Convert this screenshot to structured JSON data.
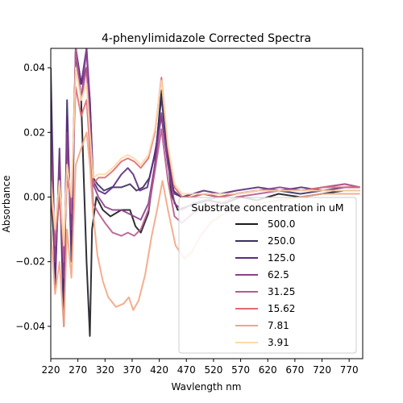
{
  "chart_data": {
    "type": "line",
    "title": "4-phenylimidazole Corrected Spectra",
    "xlabel": "Wavlength nm",
    "ylabel": "Absorbance",
    "xlim": [
      220,
      795
    ],
    "ylim": [
      -0.05,
      0.046
    ],
    "xticks": [
      220,
      270,
      320,
      370,
      420,
      470,
      520,
      570,
      620,
      670,
      720,
      770
    ],
    "yticks": [
      0.04,
      0.02,
      0.0,
      -0.02,
      -0.04
    ],
    "ytick_labels": [
      "0.04",
      "0.02",
      "0.00",
      "−0.02",
      "−0.04"
    ],
    "grid": false,
    "legend": {
      "title": "Substrate concentration in uM",
      "placement": "lower-right"
    },
    "series": [
      {
        "name": "500.0",
        "color": "#1c1a1f",
        "x": [
          220,
          228,
          236,
          244,
          250,
          258,
          266,
          276,
          286,
          292,
          296,
          304,
          316,
          330,
          350,
          366,
          376,
          386,
          400,
          412,
          424,
          432,
          442,
          454,
          470,
          490,
          510,
          540,
          570,
          600,
          640,
          680,
          720,
          760,
          790
        ],
        "y": [
          0.002,
          -0.02,
          0.01,
          -0.03,
          0.02,
          -0.01,
          0.045,
          0.03,
          -0.02,
          -0.043,
          -0.01,
          0.0,
          -0.004,
          -0.006,
          -0.004,
          -0.004,
          -0.009,
          -0.011,
          -0.005,
          0.01,
          0.033,
          0.02,
          0.001,
          -0.004,
          -0.003,
          -0.002,
          -0.001,
          -0.002,
          0.0,
          -0.001,
          0.001,
          0.0,
          0.001,
          0.002,
          0.002
        ]
      },
      {
        "name": "250.0",
        "color": "#3b2f5e",
        "x": [
          220,
          228,
          236,
          244,
          250,
          258,
          266,
          276,
          286,
          292,
          298,
          306,
          318,
          332,
          350,
          366,
          378,
          390,
          402,
          414,
          424,
          434,
          446,
          460,
          480,
          500,
          530,
          560,
          600,
          640,
          680,
          720,
          760,
          790
        ],
        "y": [
          0.04,
          -0.025,
          0.01,
          -0.04,
          0.03,
          -0.02,
          0.046,
          0.035,
          0.04,
          0.03,
          0.006,
          0.004,
          0.002,
          0.003,
          0.003,
          0.004,
          0.002,
          0.003,
          0.006,
          0.015,
          0.031,
          0.015,
          0.002,
          0.0,
          0.0,
          0.001,
          0.0,
          0.001,
          0.002,
          0.002,
          0.001,
          0.002,
          0.002,
          0.002
        ]
      },
      {
        "name": "125.0",
        "color": "#5c2a80",
        "x": [
          220,
          228,
          236,
          244,
          250,
          258,
          266,
          276,
          286,
          292,
          298,
          308,
          320,
          334,
          350,
          362,
          372,
          384,
          398,
          410,
          424,
          436,
          448,
          462,
          482,
          502,
          532,
          562,
          602,
          642,
          682,
          722,
          762,
          790
        ],
        "y": [
          0.03,
          -0.028,
          0.015,
          -0.035,
          0.025,
          -0.015,
          0.046,
          0.035,
          0.046,
          0.03,
          0.005,
          0.002,
          0.001,
          0.003,
          0.007,
          0.009,
          0.007,
          0.002,
          0.003,
          0.012,
          0.025,
          0.01,
          0.001,
          0.0,
          0.001,
          0.002,
          0.001,
          0.002,
          0.003,
          0.002,
          0.003,
          0.002,
          0.003,
          0.003
        ]
      },
      {
        "name": "62.5",
        "color": "#8b3f8e",
        "x": [
          220,
          228,
          236,
          244,
          250,
          258,
          266,
          276,
          286,
          292,
          298,
          308,
          320,
          334,
          350,
          362,
          374,
          386,
          400,
          412,
          424,
          436,
          448,
          462,
          482,
          502,
          532,
          562,
          602,
          642,
          682,
          722,
          762,
          790
        ],
        "y": [
          0.02,
          -0.02,
          0.01,
          -0.025,
          0.02,
          -0.01,
          0.046,
          0.03,
          0.046,
          0.025,
          0.004,
          0.0,
          -0.003,
          -0.004,
          -0.004,
          -0.005,
          -0.006,
          -0.007,
          -0.002,
          0.01,
          0.026,
          0.01,
          -0.002,
          -0.004,
          -0.002,
          -0.001,
          0.0,
          0.001,
          0.002,
          0.003,
          0.002,
          0.003,
          0.004,
          0.003
        ]
      },
      {
        "name": "31.25",
        "color": "#b75a8f",
        "x": [
          220,
          228,
          236,
          244,
          250,
          258,
          266,
          276,
          286,
          292,
          298,
          308,
          320,
          334,
          350,
          362,
          374,
          386,
          400,
          412,
          424,
          436,
          448,
          462,
          482,
          502,
          532,
          562,
          602,
          642,
          682,
          722,
          762,
          790
        ],
        "y": [
          0.01,
          -0.015,
          0.0,
          -0.02,
          0.01,
          -0.005,
          0.046,
          0.03,
          0.04,
          0.02,
          -0.002,
          -0.005,
          -0.008,
          -0.011,
          -0.012,
          -0.011,
          -0.012,
          -0.01,
          -0.004,
          0.008,
          0.021,
          0.005,
          -0.006,
          -0.008,
          -0.005,
          -0.003,
          -0.002,
          0.0,
          0.001,
          0.002,
          0.002,
          0.003,
          0.004,
          0.003
        ]
      },
      {
        "name": "15.62",
        "color": "#e06b72",
        "x": [
          220,
          228,
          236,
          244,
          250,
          258,
          266,
          276,
          286,
          292,
          298,
          308,
          320,
          334,
          350,
          362,
          374,
          386,
          400,
          412,
          424,
          436,
          448,
          462,
          482,
          502,
          532,
          562,
          602,
          642,
          682,
          722,
          762,
          790
        ],
        "y": [
          0.0,
          -0.01,
          0.0,
          -0.015,
          0.005,
          0.0,
          0.034,
          0.025,
          0.03,
          0.015,
          0.004,
          0.006,
          0.006,
          0.008,
          0.011,
          0.012,
          0.011,
          0.009,
          0.012,
          0.02,
          0.037,
          0.015,
          0.003,
          0.0,
          0.0,
          0.001,
          0.0,
          0.001,
          0.002,
          0.002,
          0.002,
          0.003,
          0.003,
          0.003
        ]
      },
      {
        "name": "7.81",
        "color": "#f4a582",
        "x": [
          220,
          228,
          236,
          244,
          250,
          258,
          266,
          276,
          286,
          292,
          298,
          306,
          316,
          326,
          340,
          354,
          364,
          372,
          382,
          394,
          406,
          416,
          426,
          436,
          450,
          466,
          480,
          496,
          514,
          540,
          570,
          600,
          640,
          680,
          720,
          760,
          790
        ],
        "y": [
          -0.01,
          -0.03,
          -0.02,
          -0.04,
          -0.01,
          -0.025,
          0.01,
          0.015,
          0.02,
          0.01,
          -0.005,
          -0.018,
          -0.026,
          -0.031,
          -0.034,
          -0.033,
          -0.031,
          -0.035,
          -0.032,
          -0.024,
          -0.012,
          -0.004,
          0.005,
          -0.004,
          -0.015,
          -0.019,
          -0.017,
          -0.012,
          -0.008,
          -0.005,
          -0.004,
          -0.002,
          -0.001,
          0.0,
          0.001,
          0.001,
          0.001
        ]
      },
      {
        "name": "3.91",
        "color": "#fdd9a7",
        "x": [
          220,
          228,
          236,
          244,
          250,
          258,
          266,
          276,
          286,
          292,
          298,
          308,
          320,
          334,
          350,
          362,
          374,
          386,
          400,
          412,
          424,
          436,
          448,
          462,
          482,
          502,
          532,
          562,
          602,
          642,
          682,
          722,
          762,
          790
        ],
        "y": [
          0.005,
          -0.01,
          0.005,
          -0.015,
          0.01,
          0.0,
          0.04,
          0.03,
          0.035,
          0.02,
          0.006,
          0.007,
          0.007,
          0.009,
          0.012,
          0.013,
          0.012,
          0.01,
          0.013,
          0.021,
          0.036,
          0.016,
          0.004,
          0.001,
          0.001,
          0.001,
          0.001,
          0.001,
          0.002,
          0.002,
          0.002,
          0.002,
          0.002,
          0.002
        ]
      }
    ]
  }
}
